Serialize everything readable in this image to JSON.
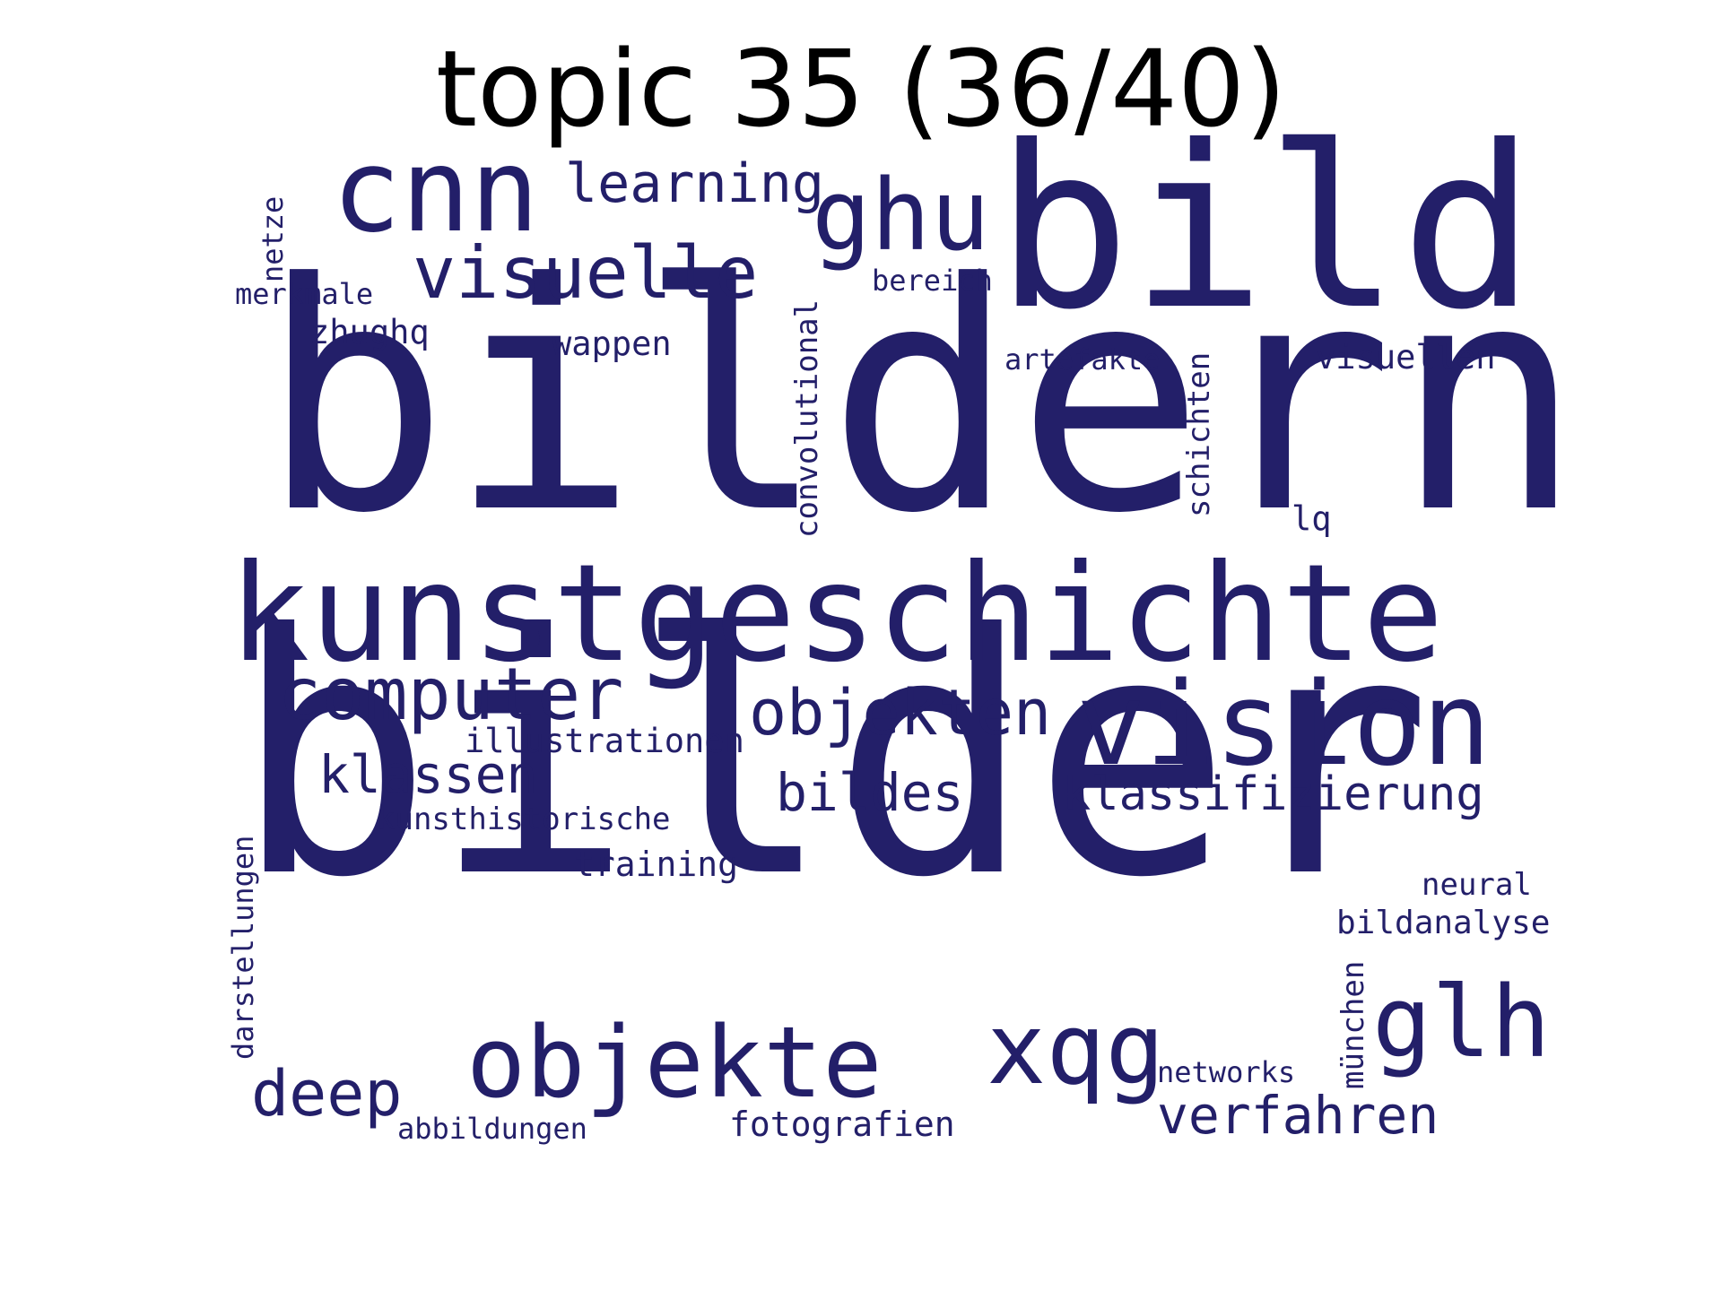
{
  "title": "topic 35 (36/40)",
  "word_color": "#231f69",
  "words": [
    {
      "text": "bildern"
    },
    {
      "text": "bilder"
    },
    {
      "text": "bild"
    },
    {
      "text": "kunstgeschichte"
    },
    {
      "text": "vision"
    },
    {
      "text": "cnn"
    },
    {
      "text": "objekte"
    },
    {
      "text": "ghu"
    },
    {
      "text": "glh"
    },
    {
      "text": "xqg"
    },
    {
      "text": "computer"
    },
    {
      "text": "visuelle"
    },
    {
      "text": "objekten"
    },
    {
      "text": "deep"
    },
    {
      "text": "learning"
    },
    {
      "text": "klassen"
    },
    {
      "text": "bildes"
    },
    {
      "text": "klassifizierung"
    },
    {
      "text": "verfahren"
    },
    {
      "text": "illustrationen"
    },
    {
      "text": "kunsthistorische"
    },
    {
      "text": "training"
    },
    {
      "text": "fotografien"
    },
    {
      "text": "abbildungen"
    },
    {
      "text": "networks"
    },
    {
      "text": "neural"
    },
    {
      "text": "bildanalyse"
    },
    {
      "text": "visuellen"
    },
    {
      "text": "artefakte"
    },
    {
      "text": "bereich"
    },
    {
      "text": "wappen"
    },
    {
      "text": "zhughq"
    },
    {
      "text": "merkmale"
    },
    {
      "text": "lq"
    },
    {
      "text": "netze"
    },
    {
      "text": "convolutional"
    },
    {
      "text": "schichten"
    },
    {
      "text": "darstellungen"
    },
    {
      "text": "münchen"
    }
  ]
}
